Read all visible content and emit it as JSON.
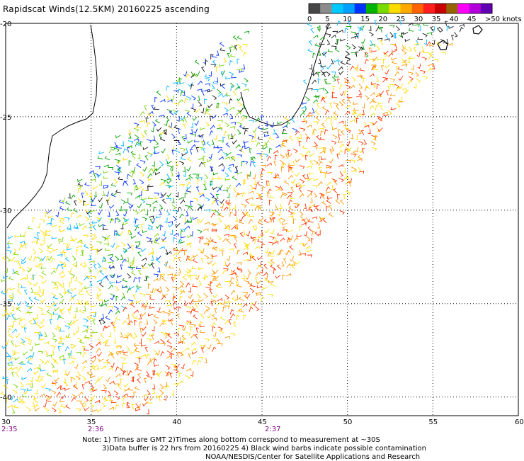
{
  "title": "Rapidscat Winds(12.5KM) 20160225 ascending",
  "colorbar": {
    "colors": [
      "#474747",
      "#8c8c8c",
      "#00c8ff",
      "#00a0ff",
      "#0032ff",
      "#00b400",
      "#78dc00",
      "#ffdc00",
      "#ffaa00",
      "#ff6400",
      "#ff1e1e",
      "#c80000",
      "#966400",
      "#ff00ff",
      "#b400dc",
      "#6400b4"
    ],
    "labels": [
      "0",
      "5",
      "10",
      "15",
      "20",
      "25",
      "30",
      "35",
      "40",
      "45",
      ">50 knots"
    ]
  },
  "lon_ticks": [
    "30",
    "35",
    "40",
    "45",
    "50",
    "55",
    "60"
  ],
  "lat_ticks": [
    "-20",
    "-25",
    "-30",
    "-35",
    "-40"
  ],
  "times": [
    "2:35",
    "2:36",
    "2:37"
  ],
  "notes": [
    "Note: 1) Times are GMT 2)Times along bottom correspond to measurement at ~30S",
    "3)Data buffer is 22 hrs from 20160225 4) Black wind barbs indicate possible contamination",
    "NOAA/NESDIS/Center for Satellite Applications and Research"
  ],
  "speed_colors": [
    "#141414",
    "#00b4ff",
    "#0032ff",
    "#00a000",
    "#78d200",
    "#ffdc00",
    "#ff9600",
    "#ff3200"
  ]
}
